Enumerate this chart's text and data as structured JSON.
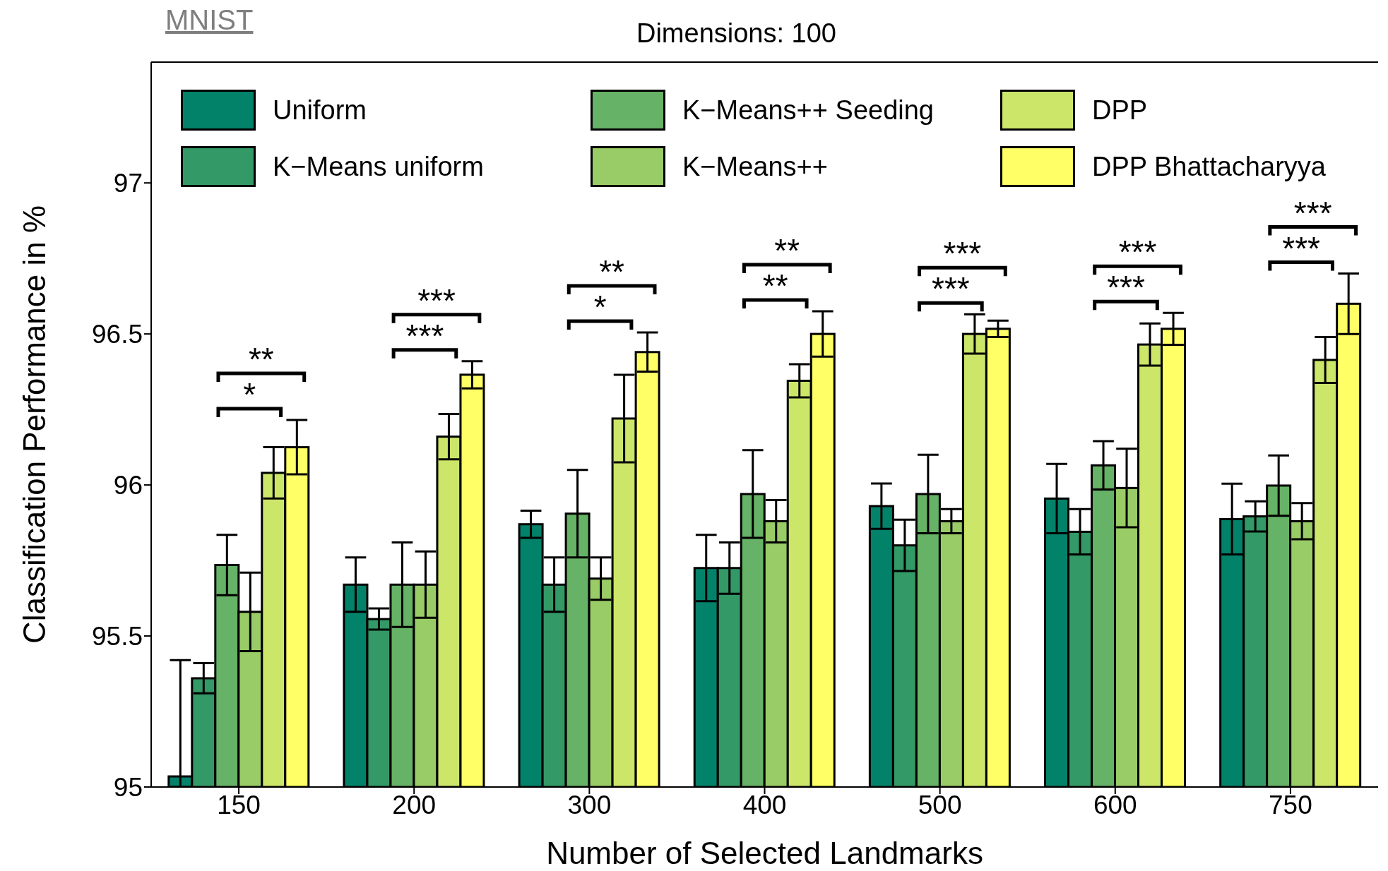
{
  "chart_data": {
    "type": "bar",
    "title": "Dimensions: 100",
    "xlabel": "Number of Selected Landmarks",
    "ylabel": "Classification Performance in %",
    "categories": [
      "150",
      "200",
      "300",
      "400",
      "500",
      "600",
      "750"
    ],
    "series": [
      {
        "name": "Uniform",
        "color": "#03826a",
        "values": [
          95.035,
          95.67,
          95.87,
          95.725,
          95.93,
          95.955,
          95.887
        ],
        "errors": [
          [
            95,
            95.42
          ],
          0.09,
          0.045,
          0.11,
          0.075,
          0.115,
          0.117
        ]
      },
      {
        "name": "K−Means uniform",
        "color": "#339966",
        "values": [
          95.36,
          95.556,
          95.67,
          95.725,
          95.8,
          95.845,
          95.896
        ],
        "errors": [
          0.05,
          0.035,
          0.09,
          0.085,
          0.085,
          0.075,
          0.05
        ]
      },
      {
        "name": "K−Means++ Seeding",
        "color": "#66b266",
        "values": [
          95.735,
          95.67,
          95.905,
          95.97,
          95.97,
          96.065,
          95.998
        ],
        "errors": [
          0.1,
          0.14,
          0.145,
          0.145,
          0.13,
          0.08,
          0.1
        ]
      },
      {
        "name": "K−Means++",
        "color": "#99cc66",
        "values": [
          95.58,
          95.67,
          95.69,
          95.88,
          95.88,
          95.99,
          95.88
        ],
        "errors": [
          0.13,
          0.11,
          0.07,
          0.07,
          0.04,
          0.13,
          0.06
        ]
      },
      {
        "name": "DPP",
        "color": "#cce66a",
        "values": [
          96.04,
          96.16,
          96.22,
          96.345,
          96.5,
          96.465,
          96.414
        ],
        "errors": [
          0.085,
          0.075,
          0.145,
          0.055,
          0.065,
          0.07,
          0.076
        ]
      },
      {
        "name": "DPP Bhattacharyya",
        "color": "#ffff66",
        "values": [
          96.125,
          96.365,
          96.44,
          96.5,
          96.517,
          96.517,
          96.6
        ],
        "errors": [
          0.09,
          0.045,
          0.065,
          0.075,
          0.027,
          0.053,
          0.1
        ]
      }
    ],
    "ylim": [
      95,
      97.4
    ],
    "yticks": [
      95,
      95.5,
      96,
      96.5,
      97
    ],
    "legend": "top",
    "grid": false,
    "annotations": [
      "MNIST",
      "*",
      "**",
      "***",
      "***",
      "*",
      "**",
      "**",
      "**",
      "***",
      "***",
      "***",
      "***",
      "***",
      "***"
    ]
  }
}
